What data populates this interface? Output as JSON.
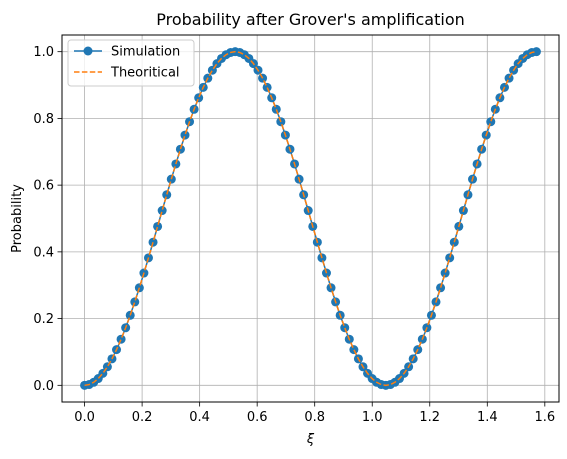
{
  "chart_data": {
    "type": "line",
    "title": "Probability after Grover's amplification",
    "xlabel": "ξ",
    "ylabel": "Probability",
    "xlim": [
      -0.0785,
      1.6493
    ],
    "ylim": [
      -0.05,
      1.05
    ],
    "xticks": [
      0.0,
      0.2,
      0.4,
      0.6,
      0.8,
      1.0,
      1.2,
      1.4,
      1.6
    ],
    "xtick_labels": [
      "0.0",
      "0.2",
      "0.4",
      "0.6",
      "0.8",
      "1.0",
      "1.2",
      "1.4",
      "1.6"
    ],
    "yticks": [
      0.0,
      0.2,
      0.4,
      0.6,
      0.8,
      1.0
    ],
    "ytick_labels": [
      "0.0",
      "0.2",
      "0.4",
      "0.6",
      "0.8",
      "1.0"
    ],
    "grid": true,
    "legend_position": "top-left",
    "x_start": 0.0,
    "x_end": 1.5708,
    "num_points": 100,
    "series": [
      {
        "name": "Simulation",
        "style": "solid line with circle markers",
        "color": "#1f77b4",
        "function": "sin^2(3x)"
      },
      {
        "name": "Theoritical",
        "style": "dashed line",
        "color": "#ff7f0e",
        "function": "sin^2(3x)"
      }
    ]
  }
}
